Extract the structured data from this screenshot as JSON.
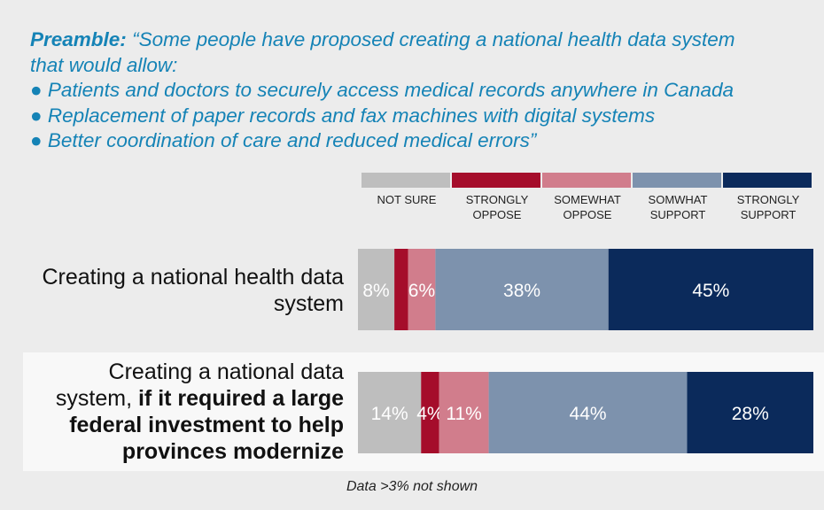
{
  "preamble": {
    "label": "Preamble:",
    "line1": "“Some people have proposed creating a national health data system",
    "line2": "that would allow:",
    "bullets": [
      "● Patients and doctors to securely access medical records anywhere in Canada",
      "● Replacement of paper records and fax machines with digital systems",
      "● Better coordination of care and reduced medical errors”"
    ]
  },
  "rows": [
    {
      "label_lines": [
        "Creating a national health data",
        "system"
      ]
    },
    {
      "label_line1": "Creating a national data",
      "label_line2_plain": "system, ",
      "label_line2_bold": "if it required a large",
      "label_line3": "federal investment to help",
      "label_line4": "provinces modernize"
    }
  ],
  "footnote": "Data >3% not shown",
  "chart_data": {
    "type": "bar",
    "orientation": "horizontal",
    "stacked": true,
    "legend_position": "top",
    "categories": [
      "Creating a national health data system",
      "Creating a national data system, if it required a large federal investment to help provinces modernize"
    ],
    "series": [
      {
        "name": "NOT SURE",
        "color": "#bebebe",
        "values": [
          8,
          14
        ],
        "labels": [
          "8%",
          "14%"
        ]
      },
      {
        "name": "STRONGLY OPPOSE",
        "color": "#a50d2b",
        "values": [
          3,
          4
        ],
        "labels": [
          "",
          "4%"
        ]
      },
      {
        "name": "SOMEWHAT OPPOSE",
        "color": "#d17d8c",
        "values": [
          6,
          11
        ],
        "labels": [
          "6%",
          "11%"
        ]
      },
      {
        "name": "SOMWHAT SUPPORT",
        "color": "#7d92ad",
        "values": [
          38,
          44
        ],
        "labels": [
          "38%",
          "44%"
        ]
      },
      {
        "name": "STRONGLY SUPPORT",
        "color": "#0b2a5b",
        "values": [
          45,
          28
        ],
        "labels": [
          "45%",
          "28%"
        ]
      }
    ],
    "legend": [
      {
        "line1": "NOT SURE",
        "line2": ""
      },
      {
        "line1": "STRONGLY",
        "line2": "OPPOSE"
      },
      {
        "line1": "SOMEWHAT",
        "line2": "OPPOSE"
      },
      {
        "line1": "SOMWHAT",
        "line2": "SUPPORT"
      },
      {
        "line1": "STRONGLY",
        "line2": "SUPPORT"
      }
    ]
  }
}
